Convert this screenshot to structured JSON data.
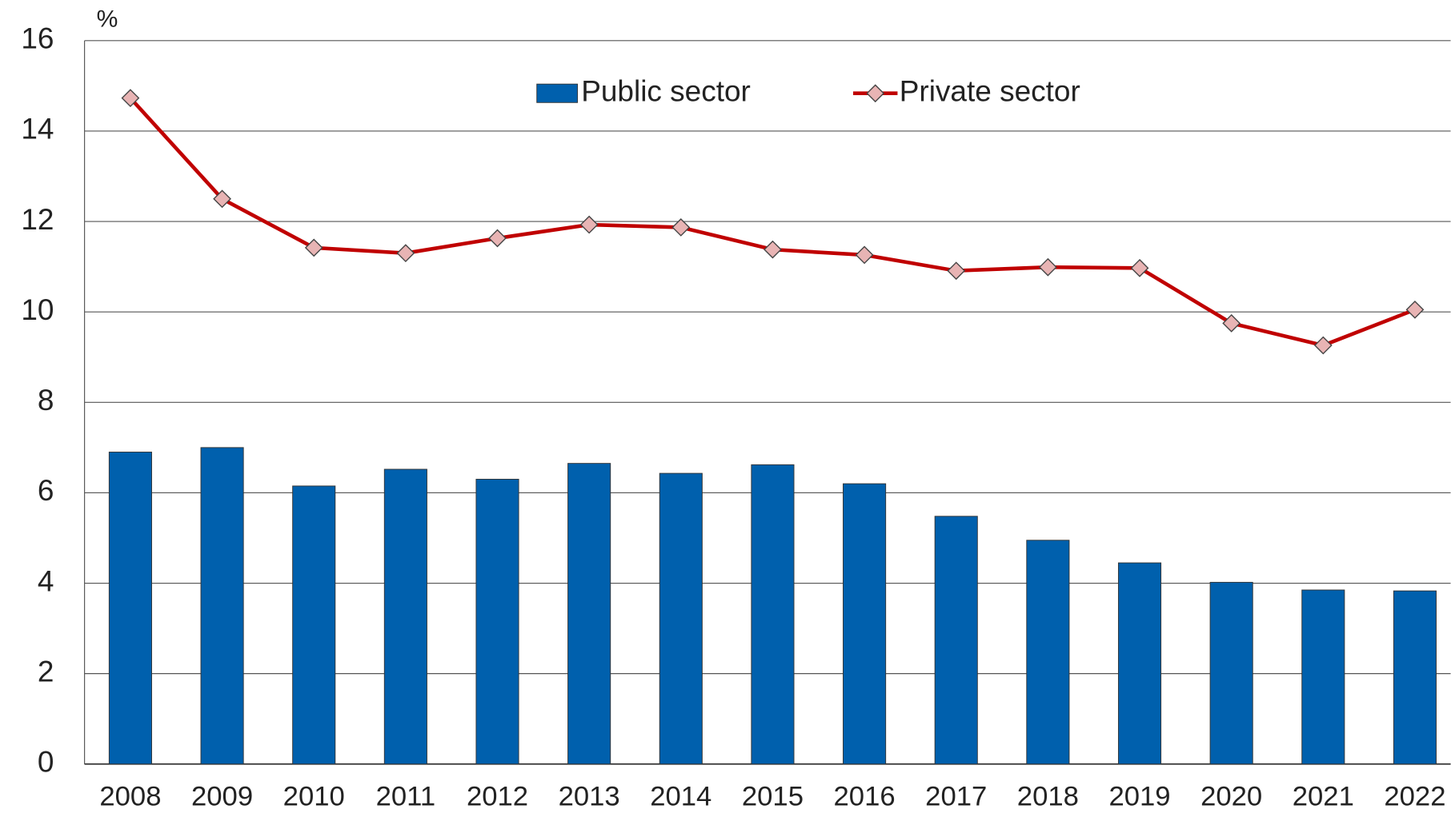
{
  "chart_data": {
    "type": "bar_line",
    "y_label": "%",
    "categories": [
      "2008",
      "2009",
      "2010",
      "2011",
      "2012",
      "2013",
      "2014",
      "2015",
      "2016",
      "2017",
      "2018",
      "2019",
      "2020",
      "2021",
      "2022"
    ],
    "series": [
      {
        "name": "Public sector",
        "type": "bar",
        "color": "#0060ad",
        "values": [
          6.9,
          7.0,
          6.15,
          6.52,
          6.3,
          6.65,
          6.43,
          6.62,
          6.2,
          5.48,
          4.95,
          4.45,
          4.02,
          3.85,
          3.83
        ]
      },
      {
        "name": "Private sector",
        "type": "line",
        "color": "#c00000",
        "marker_color": "#e8b4b4",
        "values": [
          14.73,
          12.5,
          11.42,
          11.3,
          11.63,
          11.93,
          11.87,
          11.38,
          11.26,
          10.91,
          10.99,
          10.97,
          9.75,
          9.26,
          10.05
        ]
      }
    ],
    "ylim": [
      0,
      16
    ],
    "yticks": [
      0,
      2,
      4,
      6,
      8,
      10,
      12,
      14,
      16
    ],
    "grid": true,
    "legend": "top"
  }
}
